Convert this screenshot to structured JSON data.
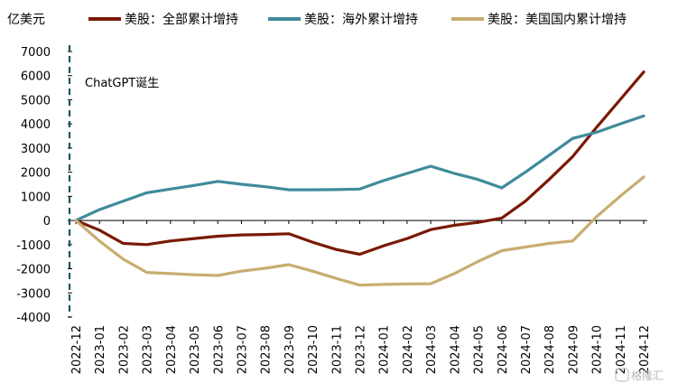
{
  "chart_data": {
    "type": "line",
    "ylabel": "亿美元",
    "ylim": [
      -4000,
      7000
    ],
    "yticks": [
      7000,
      6000,
      5000,
      4000,
      3000,
      2000,
      1000,
      0,
      -1000,
      -2000,
      -3000,
      -4000
    ],
    "x": [
      "2022-12",
      "2023-01",
      "2023-02",
      "2023-03",
      "2023-04",
      "2023-05",
      "2023-06",
      "2023-07",
      "2023-08",
      "2023-09",
      "2023-10",
      "2023-11",
      "2023-12",
      "2024-01",
      "2024-02",
      "2024-03",
      "2024-04",
      "2024-05",
      "2024-06",
      "2024-07",
      "2024-08",
      "2024-09",
      "2024-10",
      "2024-11",
      "2024-12"
    ],
    "legend_position": "top",
    "grid": false,
    "series": [
      {
        "name": "美股：全部累计增持",
        "color": "#7a1a05",
        "values": [
          0,
          -400,
          -950,
          -1000,
          -850,
          -750,
          -650,
          -600,
          -580,
          -550,
          -900,
          -1200,
          -1400,
          -1050,
          -750,
          -380,
          -200,
          -80,
          100,
          800,
          1700,
          2650,
          3850,
          5000,
          6150
        ]
      },
      {
        "name": "美股：海外累计增持",
        "color": "#3f8b9b",
        "values": [
          0,
          450,
          800,
          1150,
          1300,
          1450,
          1620,
          1500,
          1400,
          1270,
          1270,
          1280,
          1300,
          1650,
          1950,
          2250,
          1950,
          1700,
          1350,
          2000,
          2700,
          3400,
          3650,
          4000,
          4330
        ]
      },
      {
        "name": "美股：美国国内累计增持",
        "color": "#c8ad71",
        "values": [
          0,
          -850,
          -1600,
          -2150,
          -2200,
          -2250,
          -2280,
          -2100,
          -1980,
          -1830,
          -2100,
          -2400,
          -2680,
          -2650,
          -2630,
          -2620,
          -2200,
          -1700,
          -1250,
          -1100,
          -950,
          -850,
          150,
          1000,
          1800
        ]
      }
    ],
    "annotations": [
      {
        "text": "ChatGPT诞生",
        "at_x": "2022-12",
        "style": "dashed-vertical-line",
        "color": "#1c5466"
      }
    ]
  },
  "watermark": {
    "text": "格隆汇"
  }
}
